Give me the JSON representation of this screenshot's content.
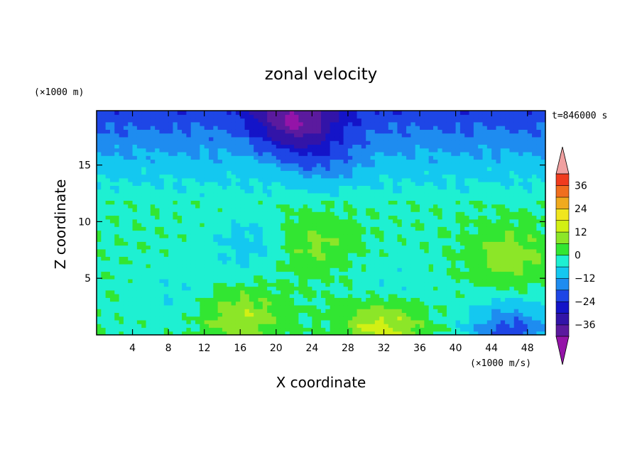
{
  "chart_data": {
    "type": "heatmap",
    "title": "zonal velocity",
    "xlabel": "X coordinate",
    "ylabel": "Z coordinate",
    "y_unit": "(×1000 m)",
    "colorbar_unit": "(×1000 m/s)",
    "time_label": "t=846000 s",
    "xlim": [
      0,
      50
    ],
    "ylim": [
      0,
      19.8
    ],
    "x_ticks": [
      4,
      8,
      12,
      16,
      20,
      24,
      28,
      32,
      36,
      40,
      44,
      48
    ],
    "y_ticks": [
      5,
      10,
      15
    ],
    "colorbar": {
      "levels": [
        -42,
        -36,
        -30,
        -24,
        -18,
        -12,
        -6,
        0,
        6,
        12,
        18,
        24,
        30,
        36,
        42
      ],
      "tick_labels": [
        "36",
        "24",
        "12",
        "0",
        "−12",
        "−24",
        "−36"
      ],
      "tick_values": [
        36,
        24,
        12,
        0,
        -12,
        -24,
        -36
      ],
      "colors": [
        "#5b1a9e",
        "#3214a8",
        "#1414c8",
        "#1e46e6",
        "#1e8cf0",
        "#14c8f0",
        "#1ef0d2",
        "#32e632",
        "#8ce628",
        "#d2f014",
        "#f0e61e",
        "#f0aa1e",
        "#f06e1e",
        "#f03c1e"
      ],
      "under_color": "#9414a8",
      "over_color": "#f0a0a0"
    },
    "field_description_points": [
      {
        "x": 16,
        "z": 1.5,
        "value": 12
      },
      {
        "x": 32,
        "z": 0.8,
        "value": 16
      },
      {
        "x": 46,
        "z": 7,
        "value": 10
      },
      {
        "x": 17,
        "z": 8,
        "value": -8
      },
      {
        "x": 24,
        "z": 8,
        "value": 8
      },
      {
        "x": 33,
        "z": 4,
        "value": -6
      },
      {
        "x": 9,
        "z": 3.5,
        "value": -5
      },
      {
        "x": 22,
        "z": 19,
        "value": -28
      },
      {
        "x": 46,
        "z": 0.3,
        "value": -20
      },
      {
        "x": 25,
        "z": 16,
        "value": -12
      }
    ]
  }
}
